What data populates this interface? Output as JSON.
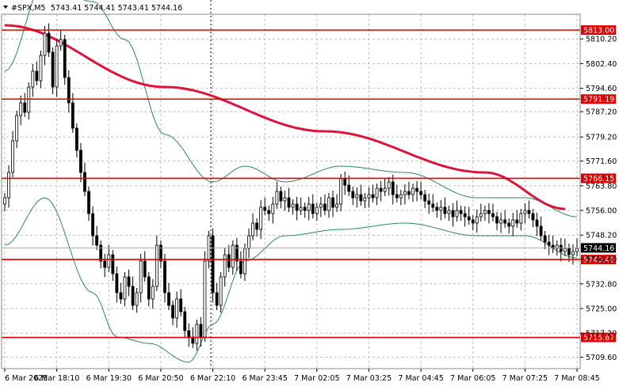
{
  "header": {
    "symbol": "#SPX,M5",
    "quote": "5743.41 5744.41 5743.41 5744.16"
  },
  "colors": {
    "bullish": "#000000",
    "bearish": "#000000",
    "level_line": "#e00000",
    "moving_average": "#dc143c",
    "bollinger": "#2e8b57",
    "price_line": "#ff8c69",
    "grid": "#c0c0c0",
    "level_tag_bg": "#e00000",
    "current_tag_bg": "#000000"
  },
  "chart_data": {
    "type": "candlestick",
    "instrument": "#SPX",
    "timeframe": "M5",
    "ylim": [
      5706.0,
      5818.0
    ],
    "y_ticks": [
      "5810.20",
      "5802.40",
      "5794.60",
      "5787.20",
      "5779.20",
      "5771.60",
      "5763.80",
      "5756.00",
      "5748.20",
      "5740.60",
      "5732.80",
      "5725.00",
      "5717.20",
      "5709.60"
    ],
    "x_ticks": [
      "6 Mar 2025",
      "6 Mar 18:10",
      "6 Mar 19:30",
      "6 Mar 20:50",
      "6 Mar 22:10",
      "6 Mar 23:45",
      "7 Mar 02:05",
      "7 Mar 03:25",
      "7 Mar 04:45",
      "7 Mar 06:05",
      "7 Mar 07:25",
      "7 Mar 08:45"
    ],
    "levels": [
      {
        "value": 5813.0,
        "label": "5813.00"
      },
      {
        "value": 5791.19,
        "label": "5791.19"
      },
      {
        "value": 5766.15,
        "label": "5766.15"
      },
      {
        "value": 5740.48,
        "label": "5740.48"
      },
      {
        "value": 5715.87,
        "label": "5715.87"
      }
    ],
    "current_price": {
      "value": 5744.16,
      "label": "5744.16"
    },
    "session_separator_index": 52,
    "closes": [
      5760,
      5768,
      5778,
      5786,
      5790,
      5787,
      5795,
      5800,
      5797,
      5805,
      5812,
      5806,
      5795,
      5808,
      5810,
      5798,
      5790,
      5782,
      5775,
      5768,
      5762,
      5755,
      5748,
      5745,
      5740,
      5738,
      5742,
      5736,
      5730,
      5728,
      5735,
      5732,
      5726,
      5730,
      5740,
      5735,
      5728,
      5732,
      5745,
      5740,
      5730,
      5726,
      5722,
      5728,
      5724,
      5718,
      5716,
      5714,
      5720,
      5716,
      5740,
      5748,
      5730,
      5726,
      5735,
      5742,
      5738,
      5745,
      5740,
      5736,
      5744,
      5748,
      5752,
      5750,
      5757,
      5756,
      5755,
      5758,
      5762,
      5759,
      5760,
      5757,
      5758,
      5756,
      5757,
      5756,
      5758,
      5755,
      5757,
      5758,
      5756,
      5760,
      5757,
      5758,
      5766,
      5764,
      5762,
      5760,
      5761,
      5759,
      5760,
      5761,
      5760,
      5763,
      5762,
      5763,
      5765,
      5761,
      5760,
      5761,
      5762,
      5761,
      5763,
      5762,
      5761,
      5759,
      5758,
      5757,
      5756,
      5757,
      5755,
      5756,
      5754,
      5756,
      5755,
      5754,
      5753,
      5752,
      5754,
      5755,
      5756,
      5755,
      5754,
      5752,
      5753,
      5752,
      5751,
      5753,
      5752,
      5755,
      5756,
      5755,
      5753,
      5751,
      5748,
      5746,
      5745,
      5744,
      5745,
      5743,
      5744,
      5742,
      5743,
      5744
    ],
    "ma_anchors": [
      [
        0,
        5814.5
      ],
      [
        40,
        5795
      ],
      [
        80,
        5781
      ],
      [
        120,
        5768
      ],
      [
        140,
        5756.5
      ]
    ],
    "bb_upper_anchors": [
      [
        0,
        5800
      ],
      [
        10,
        5828
      ],
      [
        22,
        5822
      ],
      [
        30,
        5810
      ],
      [
        40,
        5780
      ],
      [
        52,
        5765
      ],
      [
        60,
        5770
      ],
      [
        70,
        5765
      ],
      [
        84,
        5770
      ],
      [
        100,
        5768
      ],
      [
        118,
        5760
      ],
      [
        130,
        5760
      ],
      [
        143,
        5754
      ]
    ],
    "bb_lower_anchors": [
      [
        0,
        5745
      ],
      [
        10,
        5760
      ],
      [
        22,
        5730
      ],
      [
        28,
        5716
      ],
      [
        36,
        5714
      ],
      [
        46,
        5708
      ],
      [
        52,
        5720
      ],
      [
        60,
        5740
      ],
      [
        70,
        5748
      ],
      [
        84,
        5750
      ],
      [
        100,
        5752
      ],
      [
        118,
        5748
      ],
      [
        130,
        5748
      ],
      [
        143,
        5741
      ]
    ]
  }
}
